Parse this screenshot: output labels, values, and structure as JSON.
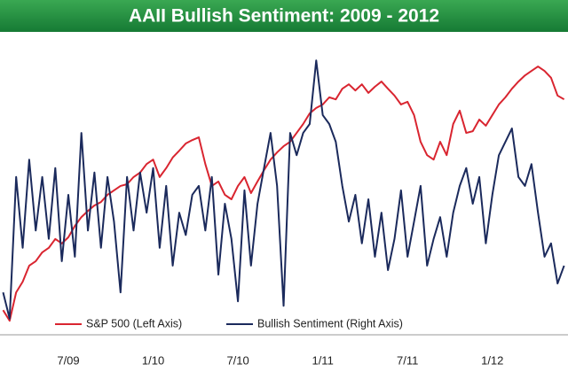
{
  "chart_data": {
    "type": "line",
    "title": "AAII Bullish Sentiment: 2009 - 2012",
    "categories": [
      null,
      null,
      null,
      null,
      null,
      null,
      null,
      null,
      null,
      null,
      "7/09",
      null,
      null,
      null,
      null,
      null,
      null,
      null,
      null,
      null,
      null,
      null,
      null,
      "1/10",
      null,
      null,
      null,
      null,
      null,
      null,
      null,
      null,
      null,
      null,
      null,
      null,
      "7/10",
      null,
      null,
      null,
      null,
      null,
      null,
      null,
      null,
      null,
      null,
      null,
      null,
      "1/11",
      null,
      null,
      null,
      null,
      null,
      null,
      null,
      null,
      null,
      null,
      null,
      null,
      "7/11",
      null,
      null,
      null,
      null,
      null,
      null,
      null,
      null,
      null,
      null,
      null,
      null,
      "1/12",
      null,
      null,
      null,
      null,
      null,
      null,
      null,
      null,
      null,
      null,
      null
    ],
    "series": [
      {
        "name": "S&P 500 (Left Axis)",
        "color": "#d92530",
        "axis": "y",
        "values": [
          712,
          681,
          764,
          795,
          842,
          855,
          881,
          894,
          920,
          907,
          925,
          958,
          984,
          1002,
          1018,
          1028,
          1049,
          1062,
          1075,
          1080,
          1101,
          1114,
          1139,
          1152,
          1101,
          1127,
          1158,
          1178,
          1199,
          1209,
          1217,
          1139,
          1075,
          1088,
          1049,
          1036,
          1075,
          1101,
          1054,
          1088,
          1121,
          1152,
          1173,
          1191,
          1204,
          1230,
          1256,
          1287,
          1303,
          1313,
          1334,
          1328,
          1359,
          1372,
          1354,
          1372,
          1347,
          1365,
          1380,
          1359,
          1339,
          1313,
          1321,
          1282,
          1204,
          1165,
          1152,
          1204,
          1165,
          1256,
          1295,
          1230,
          1235,
          1269,
          1251,
          1282,
          1313,
          1334,
          1359,
          1380,
          1398,
          1411,
          1424,
          1411,
          1391,
          1339,
          1328
        ]
      },
      {
        "name": "Bullish Sentiment (Right Axis)",
        "color": "#1b2a5c",
        "axis": "y2",
        "values": [
          20.6,
          15.9,
          41.3,
          28.6,
          44.4,
          31.7,
          41.3,
          30.2,
          42.9,
          26.2,
          38.1,
          27.0,
          49.2,
          31.7,
          42.1,
          28.6,
          41.3,
          33.3,
          20.6,
          41.3,
          31.7,
          42.1,
          34.9,
          42.9,
          28.6,
          39.7,
          25.4,
          34.9,
          30.9,
          38.1,
          39.7,
          31.7,
          41.3,
          23.8,
          36.5,
          30.2,
          19.0,
          38.9,
          25.4,
          36.5,
          42.9,
          49.2,
          39.7,
          18.2,
          49.2,
          45.2,
          49.2,
          50.8,
          62.2,
          52.4,
          50.8,
          47.6,
          39.7,
          33.3,
          38.1,
          29.4,
          37.3,
          27.0,
          34.9,
          24.6,
          30.2,
          38.9,
          27.0,
          33.3,
          39.7,
          25.4,
          30.2,
          34.1,
          27.0,
          34.9,
          39.7,
          42.9,
          36.5,
          41.3,
          29.4,
          38.1,
          45.2,
          47.6,
          50.0,
          41.3,
          39.7,
          43.6,
          34.9,
          27.0,
          29.4,
          22.2,
          25.4
        ]
      }
    ],
    "ylim": [
      640,
      1520
    ],
    "y2lim": [
      13,
      67
    ]
  }
}
